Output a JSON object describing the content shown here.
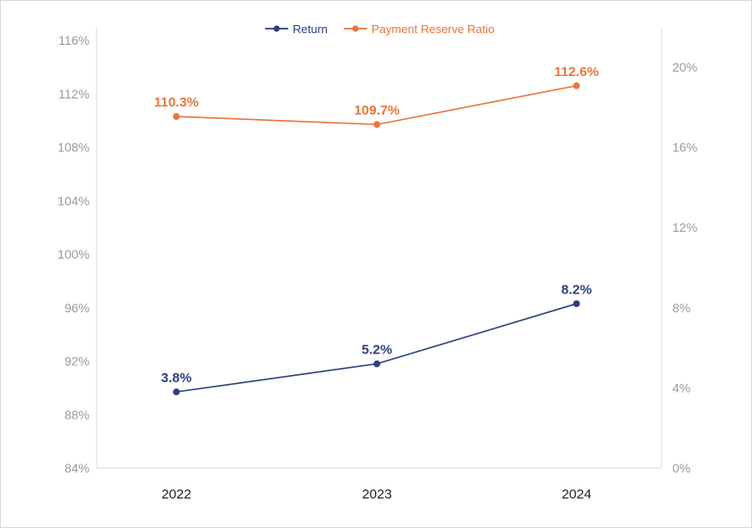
{
  "chart_data": {
    "type": "line",
    "categories": [
      "2022",
      "2023",
      "2024"
    ],
    "series": [
      {
        "name": "Return",
        "axis": "right",
        "color": "#2e3f80",
        "values": [
          3.8,
          5.2,
          8.2
        ],
        "labels": [
          "3.8%",
          "5.2%",
          "8.2%"
        ]
      },
      {
        "name": "Payment Reserve Ratio",
        "axis": "left",
        "color": "#e8773a",
        "values": [
          110.3,
          109.7,
          112.6
        ],
        "labels": [
          "110.3%",
          "109.7%",
          "112.6%"
        ]
      }
    ],
    "y_left": {
      "range": [
        84,
        116
      ],
      "ticks": [
        "84%",
        "88%",
        "92%",
        "96%",
        "100%",
        "104%",
        "108%",
        "112%",
        "116%"
      ]
    },
    "y_right": {
      "range": [
        0,
        20
      ],
      "ticks": [
        "0%",
        "4%",
        "8%",
        "12%",
        "16%",
        "20%"
      ]
    },
    "legend_position": "top-center",
    "grid": false
  }
}
